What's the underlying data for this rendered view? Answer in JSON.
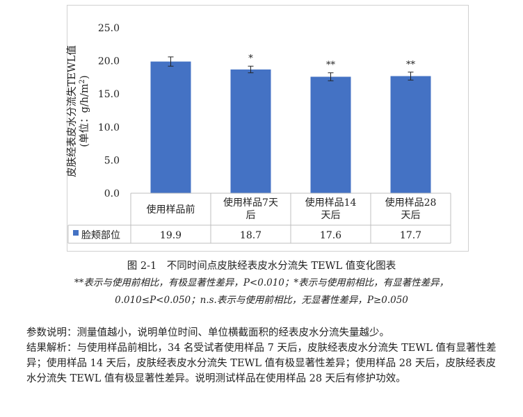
{
  "chart_data": {
    "type": "bar",
    "ylabel": "皮肤经表皮水分流失TEWL值",
    "ylabel_unit_prefix": "(单位：g/h/m",
    "ylabel_unit_sup": "2",
    "ylabel_unit_suffix": ")",
    "ylim": [
      0,
      25
    ],
    "yticks": [
      "0.0",
      "5.0",
      "10.0",
      "15.0",
      "20.0",
      "25.0"
    ],
    "categories": [
      [
        "使用样品前"
      ],
      [
        "使用样品7天",
        "后"
      ],
      [
        "使用样品14",
        "天后"
      ],
      [
        "使用样品28",
        "天后"
      ]
    ],
    "series": [
      {
        "name": "脸颊部位",
        "values": [
          19.9,
          18.7,
          17.6,
          17.7
        ],
        "errors": [
          0.7,
          0.5,
          0.6,
          0.6
        ],
        "value_labels": [
          "19.9",
          "18.7",
          "17.6",
          "17.7"
        ],
        "significance": [
          "",
          "*",
          "**",
          "**"
        ],
        "color": "#4472C4"
      }
    ],
    "legend_position": "data-table",
    "grid": false
  },
  "figure": {
    "title": "图 2-1　不同时间点皮肤经表皮水分流失 TEWL 值变化图表",
    "note_line1": "**表示与使用前相比，有极显著性差异，P<0.010；*表示与使用前相比，有显著性差异，",
    "note_line2": "0.010≤P<0.050；n.s.表示与使用前相比，无显著性差异，P≥0.050"
  },
  "text": {
    "params": "参数说明：测量值越小，说明单位时间、单位横截面积的经表皮水分流失量越少。",
    "result": "结果解析：与使用样品前相比，34 名受试者使用样品 7 天后，皮肤经表皮水分流失 TEWL 值有显著性差异；使用样品 14 天后，皮肤经表皮水分流失 TEWL 值有极显著性差异；使用样品 28 天后，皮肤经表皮水分流失 TEWL 值有极显著性差异。说明测试样品在使用样品 28 天后有修护功效。"
  }
}
